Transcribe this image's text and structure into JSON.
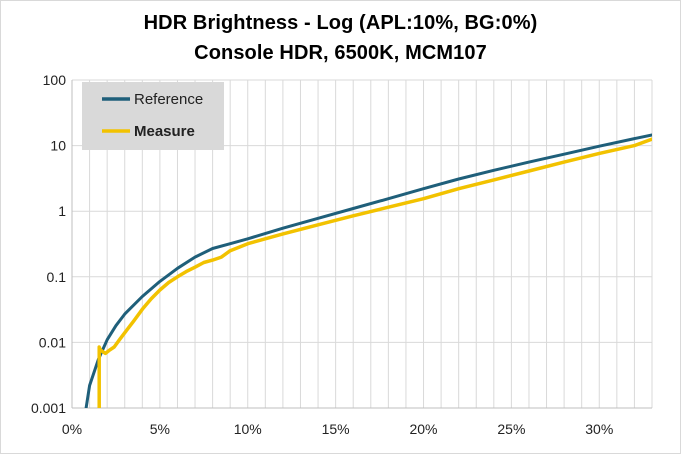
{
  "chart_data": {
    "type": "line",
    "title": "HDR Brightness - Log (APL:10%,  BG:0%)",
    "subtitle": "Console HDR, 6500K, MCM107",
    "xlabel": "",
    "ylabel": "",
    "xlim": [
      0,
      0.33
    ],
    "ylim": [
      0.001,
      100
    ],
    "yscale": "log",
    "x_ticks": [
      "0%",
      "5%",
      "10%",
      "15%",
      "20%",
      "25%",
      "30%"
    ],
    "y_ticks": [
      "0.001",
      "0.01",
      "0.1",
      "1",
      "10",
      "100"
    ],
    "grid": true,
    "legend_position": "top-left",
    "series": [
      {
        "name": "Reference",
        "color": "#1f5f7a",
        "x": [
          0.008,
          0.01,
          0.015,
          0.02,
          0.025,
          0.03,
          0.04,
          0.05,
          0.06,
          0.07,
          0.08,
          0.09,
          0.1,
          0.12,
          0.14,
          0.16,
          0.18,
          0.2,
          0.22,
          0.24,
          0.26,
          0.28,
          0.3,
          0.32,
          0.33
        ],
        "y": [
          0.001,
          0.0022,
          0.0055,
          0.011,
          0.018,
          0.027,
          0.05,
          0.085,
          0.135,
          0.2,
          0.27,
          0.32,
          0.38,
          0.55,
          0.78,
          1.1,
          1.55,
          2.2,
          3.1,
          4.2,
          5.6,
          7.4,
          9.8,
          12.8,
          14.5
        ]
      },
      {
        "name": "Measure",
        "color": "#f2c200",
        "x": [
          0.0155,
          0.0155,
          0.016,
          0.0175,
          0.019,
          0.021,
          0.024,
          0.027,
          0.03,
          0.035,
          0.04,
          0.045,
          0.05,
          0.055,
          0.06,
          0.065,
          0.07,
          0.075,
          0.08,
          0.085,
          0.09,
          0.1,
          0.12,
          0.14,
          0.16,
          0.18,
          0.2,
          0.22,
          0.24,
          0.26,
          0.28,
          0.3,
          0.32,
          0.33
        ],
        "y": [
          0.001,
          0.0085,
          0.0078,
          0.0072,
          0.0068,
          0.0075,
          0.0085,
          0.011,
          0.014,
          0.021,
          0.032,
          0.046,
          0.063,
          0.082,
          0.1,
          0.12,
          0.14,
          0.165,
          0.18,
          0.2,
          0.25,
          0.32,
          0.45,
          0.62,
          0.85,
          1.15,
          1.55,
          2.2,
          3.0,
          4.1,
          5.6,
          7.6,
          10.0,
          12.5
        ]
      }
    ]
  }
}
